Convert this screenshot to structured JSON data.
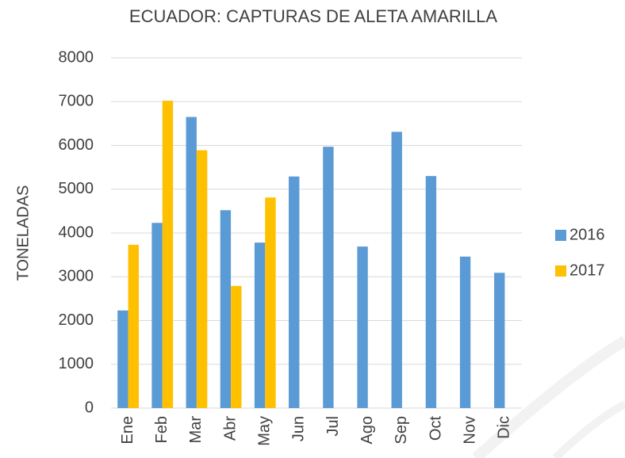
{
  "chart_data": {
    "type": "bar",
    "title": "ECUADOR: CAPTURAS DE ALETA AMARILLA",
    "y_label": "TONELADAS",
    "categories": [
      "Ene",
      "Feb",
      "Mar",
      "Abr",
      "May",
      "Jun",
      "Jul",
      "Ago",
      "Sep",
      "Oct",
      "Nov",
      "Dic"
    ],
    "series": [
      {
        "name": "2016",
        "color": "#5b9bd5",
        "values": [
          2230,
          4230,
          6650,
          4520,
          3780,
          5290,
          5970,
          3690,
          6310,
          5300,
          3460,
          3090
        ]
      },
      {
        "name": "2017",
        "color": "#ffc000",
        "values": [
          3730,
          7020,
          5890,
          2790,
          4810,
          null,
          null,
          null,
          null,
          null,
          null,
          null
        ]
      }
    ],
    "ylim": [
      0,
      8000
    ],
    "yticks": [
      0,
      1000,
      2000,
      3000,
      4000,
      5000,
      6000,
      7000,
      8000
    ],
    "grid": true,
    "legend": "right"
  }
}
